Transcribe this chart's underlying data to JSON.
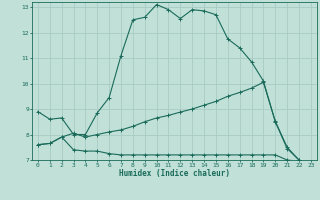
{
  "xlabel": "Humidex (Indice chaleur)",
  "ylabel": "",
  "background_color": "#c0e0d8",
  "grid_color": "#a8ccC4",
  "line_color": "#1a6b5a",
  "xlim": [
    -0.5,
    23.5
  ],
  "ylim": [
    7,
    13.2
  ],
  "x_ticks": [
    0,
    1,
    2,
    3,
    4,
    5,
    6,
    7,
    8,
    9,
    10,
    11,
    12,
    13,
    14,
    15,
    16,
    17,
    18,
    19,
    20,
    21,
    22,
    23
  ],
  "y_ticks": [
    7,
    8,
    9,
    10,
    11,
    12,
    13
  ],
  "line1_x": [
    0,
    1,
    2,
    3,
    4,
    5,
    6,
    7,
    8,
    9,
    10,
    11,
    12,
    13,
    14,
    15,
    16,
    17,
    18,
    19,
    20,
    21,
    22,
    23
  ],
  "line1_y": [
    8.9,
    8.6,
    8.65,
    8.0,
    8.0,
    8.85,
    9.45,
    11.1,
    12.5,
    12.6,
    13.1,
    12.9,
    12.55,
    12.9,
    12.85,
    12.7,
    11.75,
    11.4,
    10.85,
    10.1,
    8.5,
    7.45,
    7.0,
    6.85
  ],
  "line2_x": [
    0,
    1,
    2,
    3,
    4,
    5,
    6,
    7,
    8,
    9,
    10,
    11,
    12,
    13,
    14,
    15,
    16,
    17,
    18,
    19,
    20,
    21,
    22,
    23
  ],
  "line2_y": [
    7.6,
    7.65,
    7.9,
    8.05,
    7.9,
    8.0,
    8.1,
    8.18,
    8.32,
    8.5,
    8.65,
    8.75,
    8.88,
    9.0,
    9.15,
    9.3,
    9.5,
    9.65,
    9.82,
    10.05,
    8.52,
    7.5,
    7.0,
    6.85
  ],
  "line3_x": [
    0,
    1,
    2,
    3,
    4,
    5,
    6,
    7,
    8,
    9,
    10,
    11,
    12,
    13,
    14,
    15,
    16,
    17,
    18,
    19,
    20,
    21,
    22,
    23
  ],
  "line3_y": [
    7.6,
    7.65,
    7.9,
    7.4,
    7.35,
    7.35,
    7.25,
    7.2,
    7.2,
    7.2,
    7.2,
    7.2,
    7.2,
    7.2,
    7.2,
    7.2,
    7.2,
    7.2,
    7.2,
    7.2,
    7.2,
    7.0,
    6.95,
    6.85
  ]
}
